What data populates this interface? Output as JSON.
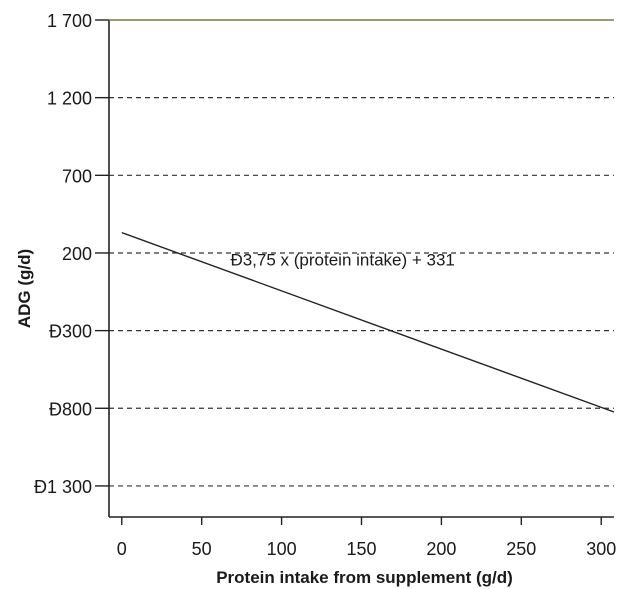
{
  "chart_data": {
    "type": "line",
    "title": "",
    "xlabel": "Protein intake from supplement (g/d)",
    "ylabel": "ADG (g/d)",
    "xlim": [
      -8,
      308
    ],
    "ylim": [
      -1500,
      1700
    ],
    "x_ticks": [
      {
        "value": 0,
        "label": "0"
      },
      {
        "value": 50,
        "label": "50"
      },
      {
        "value": 100,
        "label": "100"
      },
      {
        "value": 150,
        "label": "150"
      },
      {
        "value": 200,
        "label": "200"
      },
      {
        "value": 250,
        "label": "250"
      },
      {
        "value": 300,
        "label": "300"
      }
    ],
    "y_ticks": [
      {
        "value": 1700,
        "label": "1 700"
      },
      {
        "value": 1200,
        "label": "1 200"
      },
      {
        "value": 700,
        "label": "700"
      },
      {
        "value": 200,
        "label": "200"
      },
      {
        "value": -300,
        "label": "Đ300"
      },
      {
        "value": -800,
        "label": "Đ800"
      },
      {
        "value": -1300,
        "label": "Đ1 300"
      }
    ],
    "grid": {
      "y": true,
      "x": false,
      "style": "dashed"
    },
    "series": [
      {
        "x": [
          0,
          308
        ],
        "y": [
          331,
          -824
        ]
      }
    ],
    "annotation": {
      "text": "Đ3,75 x (protein intake) + 331",
      "x": 68,
      "y": 120
    },
    "colors": {
      "line": "#222222",
      "grid": "#333333",
      "axis": "#222222",
      "top_border": "#7a7a3a"
    }
  }
}
